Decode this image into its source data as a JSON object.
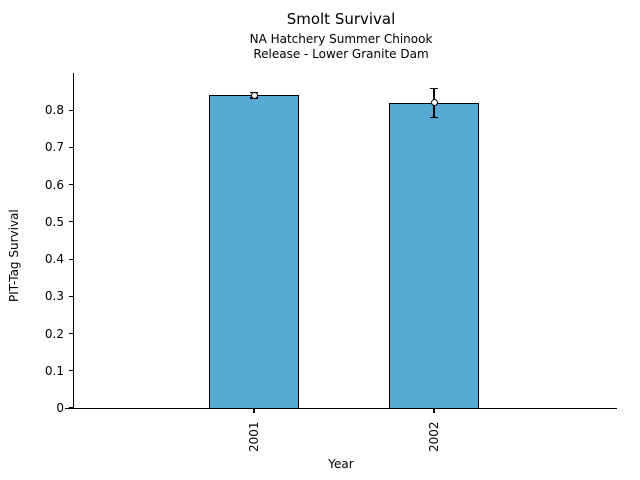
{
  "chart_data": {
    "type": "bar",
    "title": "Smolt Survival",
    "subtitle1": "NA Hatchery Summer Chinook",
    "subtitle2": "Release - Lower Granite Dam",
    "xlabel": "Year",
    "ylabel": "PIT-Tag Survival",
    "categories": [
      "2001",
      "2002"
    ],
    "values": [
      0.84,
      0.82
    ],
    "error_low": [
      0.833,
      0.781
    ],
    "error_high": [
      0.848,
      0.859
    ],
    "ylim": [
      0,
      0.9
    ],
    "yticks": [
      0,
      0.1,
      0.2,
      0.3,
      0.4,
      0.5,
      0.6,
      0.7,
      0.8
    ],
    "ytick_labels": [
      "0",
      "0.1",
      "0.2",
      "0.3",
      "0.4",
      "0.5",
      "0.6",
      "0.7",
      "0.8"
    ],
    "bar_color": "#57A9D3",
    "bar_edge_color": "#000000",
    "marker": "open-circle",
    "grid": false,
    "legend": null
  }
}
